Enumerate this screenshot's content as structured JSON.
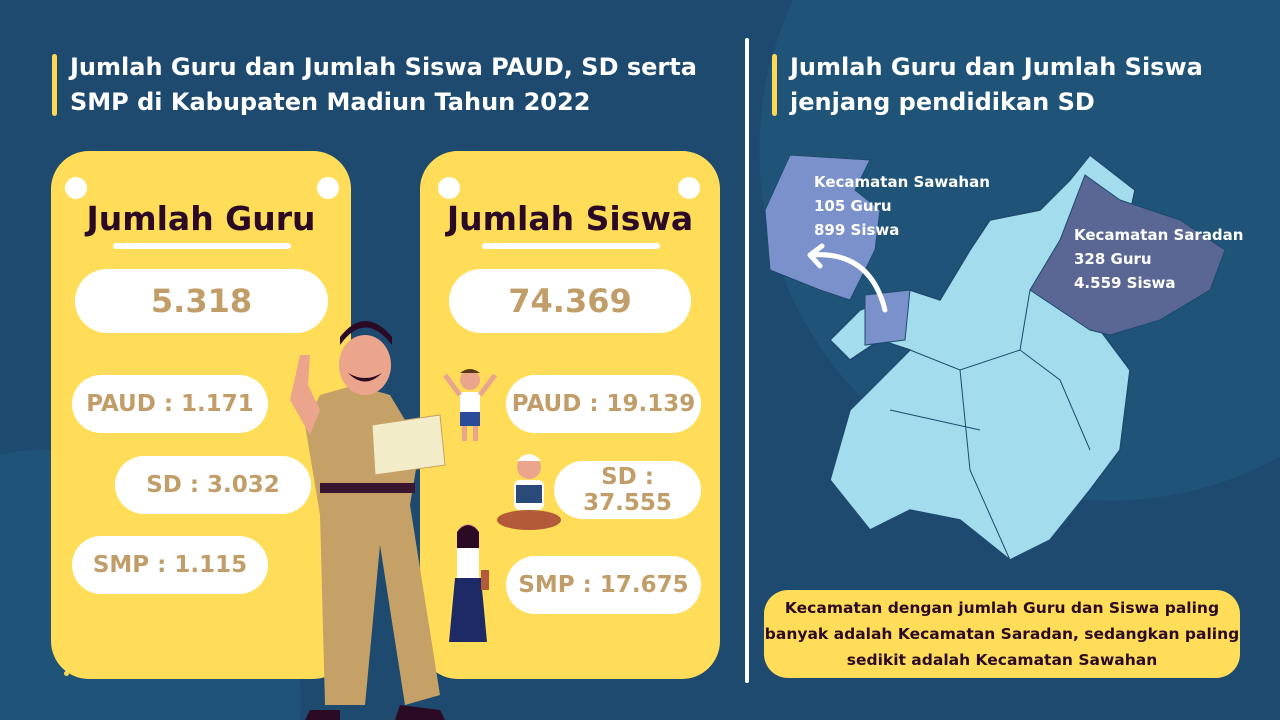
{
  "left": {
    "title_line1": "Jumlah Guru dan Jumlah Siswa PAUD, SD serta",
    "title_line2": "SMP di Kabupaten Madiun Tahun 2022",
    "guru": {
      "heading": "Jumlah Guru",
      "total": "5.318",
      "paud": "PAUD : 1.171",
      "sd": "SD : 3.032",
      "smp": "SMP : 1.115"
    },
    "siswa": {
      "heading": "Jumlah Siswa",
      "total": "74.369",
      "paud": "PAUD : 19.139",
      "sd": "SD : 37.555",
      "smp": "SMP : 17.675"
    }
  },
  "right": {
    "title_line1": "Jumlah Guru dan Jumlah Siswa",
    "title_line2": "jenjang pendidikan SD",
    "sawahan": {
      "name": "Kecamatan Sawahan",
      "guru": "105 Guru",
      "siswa": "899 Siswa"
    },
    "saradan": {
      "name": "Kecamatan Saradan",
      "guru": "328 Guru",
      "siswa": "4.559 Siswa"
    },
    "note": "Kecamatan dengan jumlah Guru dan Siswa paling banyak adalah Kecamatan Saradan, sedangkan paling sedikit adalah Kecamatan Sawahan"
  },
  "colors": {
    "background": "#1d4a6e",
    "card": "#ffdd59",
    "number": "#c19e69",
    "map": "#a3dcec",
    "sawahan": "#7b91cc",
    "saradan": "#5a6794"
  }
}
